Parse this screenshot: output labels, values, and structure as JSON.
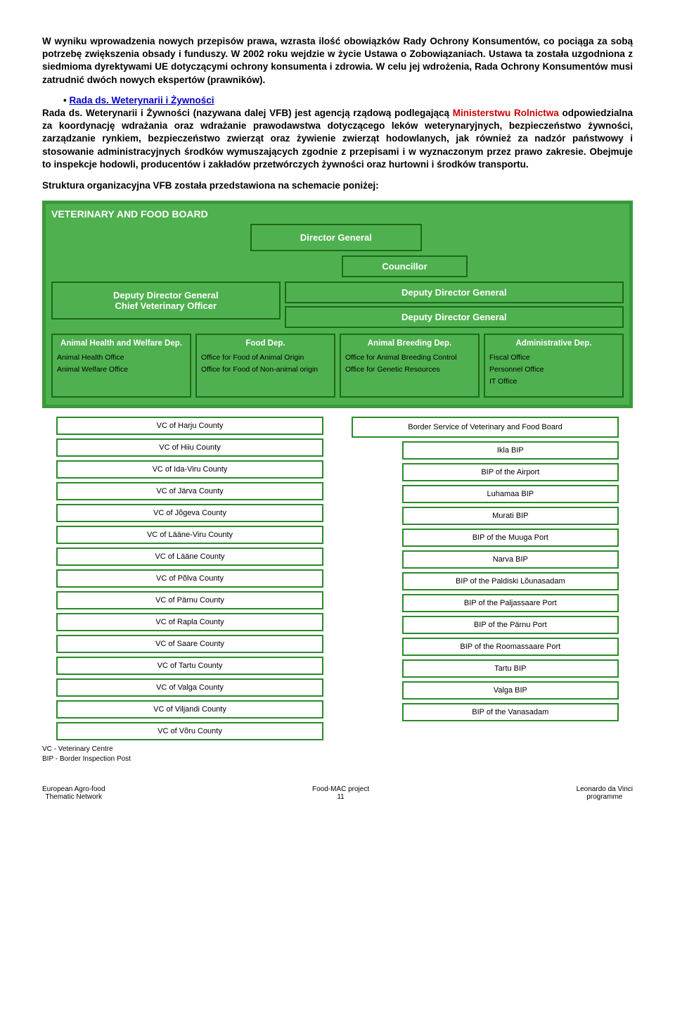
{
  "paragraphs": {
    "p1": "W wyniku wprowadzenia nowych przepisów prawa, wzrasta ilość obowiązków Rady Ochrony Konsumentów, co pociąga za sobą potrzebę zwiększenia obsady i funduszy. W 2002 roku wejdzie w życie Ustawa o Zobowiązaniach. Ustawa ta została uzgodniona z siedmioma dyrektywami UE dotyczącymi ochrony konsumenta i zdrowia. W celu jej wdrożenia, Rada Ochrony Konsumentów musi zatrudnić dwóch nowych ekspertów (prawników).",
    "bullet_link": "Rada ds. Weterynarii i Żywności",
    "p2a": "Rada ds. Weterynarii i Żywności (nazywana dalej VFB) jest agencją rządową podlegającą ",
    "p2_red": "Ministerstwu Rolnictwa",
    "p2b": " odpowiedzialna za koordynację wdrażania oraz wdrażanie prawodawstwa dotyczącego leków weterynaryjnych, bezpieczeństwo żywności, zarządzanie rynkiem, bezpieczeństwo zwierząt oraz żywienie zwierząt hodowlanych, jak również za nadzór państwowy i stosowanie administracyjnych środków wymuszających zgodnie z przepisami i w wyznaczonym przez prawo zakresie. Obejmuje to inspekcje hodowli, producentów i zakładów przetwórczych żywności oraz hurtowni i środków transportu.",
    "p3": "Struktura organizacyjna VFB została przedstawiona na schemacie poniżej:"
  },
  "chart": {
    "title": "VETERINARY AND FOOD BOARD",
    "director": "Director General",
    "councillor": "Councillor",
    "dd_left": "Deputy Director General\nChief Veterinary Officer",
    "dd_r1": "Deputy Director General",
    "dd_r2": "Deputy Director General",
    "depts": [
      {
        "title": "Animal Health and Welfare Dep.",
        "items": [
          "Animal Health Office",
          "Animal Welfare Office"
        ]
      },
      {
        "title": "Food Dep.",
        "items": [
          "Office for Food of Animal Origin",
          "Office for Food of Non-animal origin"
        ]
      },
      {
        "title": "Animal Breeding Dep.",
        "items": [
          "Office for Animal Breeding Control",
          "Office for Genetic Resources"
        ]
      },
      {
        "title": "Administrative Dep.",
        "items": [
          "Fiscal Office",
          "Personnel Office",
          "IT Office"
        ]
      }
    ],
    "vc_list": [
      "VC of Harju County",
      "VC of Hiiu County",
      "VC of Ida-Viru County",
      "VC of Järva County",
      "VC of Jõgeva County",
      "VC of Lääne-Viru County",
      "VC of Lääne County",
      "VC of Põlva County",
      "VC of Pärnu County",
      "VC of Rapla County",
      "VC of Saare County",
      "VC of Tartu County",
      "VC of Valga County",
      "VC of Viljandi County",
      "VC of Võru County"
    ],
    "border_head": "Border Service of Veterinary and Food Board",
    "bip_list": [
      "Ikla BIP",
      "BIP of the Airport",
      "Luhamaa BIP",
      "Murati BIP",
      "BIP of the Muuga Port",
      "Narva BIP",
      "BIP of the Paldiski Lõunasadam",
      "BIP of the Paljassaare Port",
      "BIP of the Pärnu Port",
      "BIP of the Roomassaare Port",
      "Tartu BIP",
      "Valga BIP",
      "BIP of the Vanasadam"
    ],
    "legend1": "VC - Veterinary Centre",
    "legend2": "BIP - Border Inspection Post"
  },
  "footer": {
    "left1": "European Agro-food",
    "left2": "Thematic Network",
    "center1": "Food-MAC project",
    "center2": "11",
    "right1": "Leonardo da Vinci",
    "right2": "programme"
  }
}
